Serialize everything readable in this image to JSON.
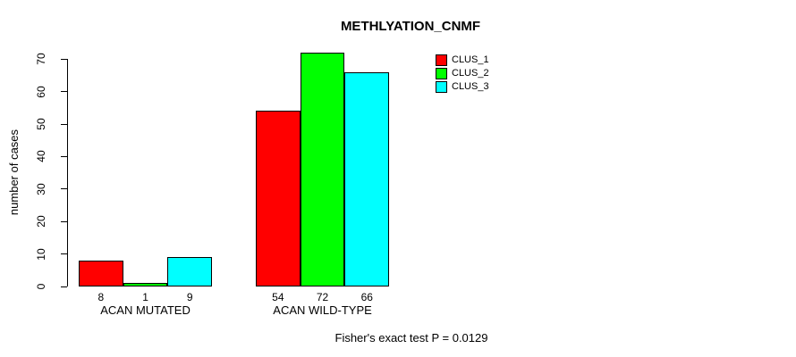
{
  "title": "METHLYATION_CNMF",
  "y_axis_label": "number of cases",
  "footer_note": "Fisher's exact test P = 0.0129",
  "legend": {
    "entries": [
      {
        "label": "CLUS_1",
        "color": "#FF0000"
      },
      {
        "label": "CLUS_2",
        "color": "#00FF00"
      },
      {
        "label": "CLUS_3",
        "color": "#00FFFF"
      }
    ]
  },
  "chart_data": {
    "type": "bar",
    "title": "METHLYATION_CNMF",
    "xlabel": "",
    "ylabel": "number of cases",
    "categories": [
      "ACAN MUTATED",
      "ACAN WILD-TYPE"
    ],
    "series": [
      {
        "name": "CLUS_1",
        "color": "#FF0000",
        "values": [
          8,
          54
        ]
      },
      {
        "name": "CLUS_2",
        "color": "#00FF00",
        "values": [
          1,
          72
        ]
      },
      {
        "name": "CLUS_3",
        "color": "#00FFFF",
        "values": [
          9,
          66
        ]
      }
    ],
    "bar_value_labels": [
      [
        8,
        1,
        9
      ],
      [
        54,
        72,
        66
      ]
    ],
    "yticks": [
      0,
      10,
      20,
      30,
      40,
      50,
      60,
      70
    ],
    "ylim": [
      0,
      70
    ],
    "grid": false,
    "legend_position": "top-right",
    "annotation": "Fisher's exact test P = 0.0129"
  }
}
